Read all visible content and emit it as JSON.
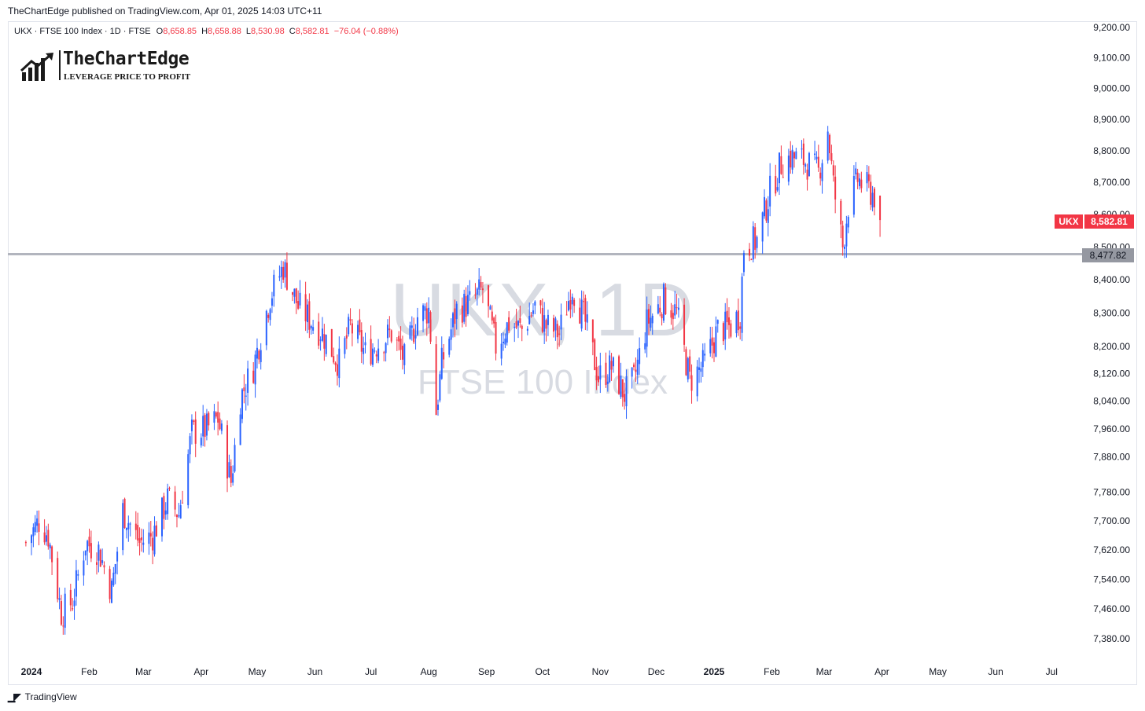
{
  "header": {
    "publish_text": "TheChartEdge published on TradingView.com, Apr 01, 2025 14:03 UTC+11",
    "symbol_line": "UKX · FTSE 100 Index · 1D · FTSE",
    "ohlc": [
      {
        "label": "O",
        "value": "8,658.85"
      },
      {
        "label": "H",
        "value": "8,658.88"
      },
      {
        "label": "L",
        "value": "8,530.98"
      },
      {
        "label": "C",
        "value": "8,582.81"
      }
    ],
    "change": "−76.04 (−0.88%)"
  },
  "logo": {
    "title": "TheChartEdge",
    "subtitle": "LEVERAGE PRICE TO PROFIT",
    "icon": "bar-chart-arrow-icon"
  },
  "watermark": {
    "symbol": "UKX, 1D",
    "name": "FTSE 100 Index"
  },
  "tags": {
    "symbol": "UKX",
    "last_price": "8,582.81",
    "level_price": "8,477.82"
  },
  "footer": {
    "brand": "TradingView",
    "icon": "tradingview-logo-icon"
  },
  "colors": {
    "up": "#2962ff",
    "down": "#f23645",
    "level_line": "#b2b5be",
    "level_tag": "#9598a1"
  },
  "chart_data": {
    "type": "candlestick",
    "interval": "1D",
    "y_scale": "log",
    "y_ticks": [
      {
        "value": 9200,
        "label": "9,200.00"
      },
      {
        "value": 9100,
        "label": "9,100.00"
      },
      {
        "value": 9000,
        "label": "9,000.00"
      },
      {
        "value": 8900,
        "label": "8,900.00"
      },
      {
        "value": 8800,
        "label": "8,800.00"
      },
      {
        "value": 8700,
        "label": "8,700.00"
      },
      {
        "value": 8600,
        "label": "8,600.00"
      },
      {
        "value": 8500,
        "label": "8,500.00"
      },
      {
        "value": 8400,
        "label": "8,400.00"
      },
      {
        "value": 8300,
        "label": "8,300.00"
      },
      {
        "value": 8200,
        "label": "8,200.00"
      },
      {
        "value": 8120,
        "label": "8,120.00"
      },
      {
        "value": 8040,
        "label": "8,040.00"
      },
      {
        "value": 7960,
        "label": "7,960.00"
      },
      {
        "value": 7880,
        "label": "7,880.00"
      },
      {
        "value": 7780,
        "label": "7,780.00"
      },
      {
        "value": 7700,
        "label": "7,700.00"
      },
      {
        "value": 7620,
        "label": "7,620.00"
      },
      {
        "value": 7540,
        "label": "7,540.00"
      },
      {
        "value": 7460,
        "label": "7,460.00"
      },
      {
        "value": 7380,
        "label": "7,380.00"
      }
    ],
    "x_ticks": [
      {
        "date": "2024-01-01",
        "label": "2024",
        "bold": true
      },
      {
        "date": "2024-02-01",
        "label": "Feb"
      },
      {
        "date": "2024-03-01",
        "label": "Mar"
      },
      {
        "date": "2024-04-01",
        "label": "Apr"
      },
      {
        "date": "2024-05-01",
        "label": "May"
      },
      {
        "date": "2024-06-01",
        "label": "Jun"
      },
      {
        "date": "2024-07-01",
        "label": "Jul"
      },
      {
        "date": "2024-08-01",
        "label": "Aug"
      },
      {
        "date": "2024-09-01",
        "label": "Sep"
      },
      {
        "date": "2024-10-01",
        "label": "Oct"
      },
      {
        "date": "2024-11-01",
        "label": "Nov"
      },
      {
        "date": "2024-12-01",
        "label": "Dec"
      },
      {
        "date": "2025-01-01",
        "label": "2025",
        "bold": true
      },
      {
        "date": "2025-02-01",
        "label": "Feb"
      },
      {
        "date": "2025-03-01",
        "label": "Mar"
      },
      {
        "date": "2025-04-01",
        "label": "Apr"
      },
      {
        "date": "2025-05-01",
        "label": "May"
      },
      {
        "date": "2025-06-01",
        "label": "Jun"
      },
      {
        "date": "2025-07-01",
        "label": "Jul"
      }
    ],
    "horizontal_level": 8477.82,
    "last_close": 8582.81,
    "anchors": [
      {
        "date": "2023-12-29",
        "close": 7640
      },
      {
        "date": "2024-01-05",
        "close": 7700
      },
      {
        "date": "2024-01-10",
        "close": 7660
      },
      {
        "date": "2024-01-17",
        "close": 7450
      },
      {
        "date": "2024-01-23",
        "close": 7480
      },
      {
        "date": "2024-01-30",
        "close": 7640
      },
      {
        "date": "2024-02-06",
        "close": 7620
      },
      {
        "date": "2024-02-13",
        "close": 7510
      },
      {
        "date": "2024-02-19",
        "close": 7730
      },
      {
        "date": "2024-02-28",
        "close": 7640
      },
      {
        "date": "2024-03-06",
        "close": 7660
      },
      {
        "date": "2024-03-14",
        "close": 7760
      },
      {
        "date": "2024-03-20",
        "close": 7720
      },
      {
        "date": "2024-03-27",
        "close": 7950
      },
      {
        "date": "2024-04-04",
        "close": 7960
      },
      {
        "date": "2024-04-10",
        "close": 7990
      },
      {
        "date": "2024-04-17",
        "close": 7810
      },
      {
        "date": "2024-04-22",
        "close": 8050
      },
      {
        "date": "2024-04-29",
        "close": 8140
      },
      {
        "date": "2024-05-08",
        "close": 8350
      },
      {
        "date": "2024-05-15",
        "close": 8440
      },
      {
        "date": "2024-05-23",
        "close": 8320
      },
      {
        "date": "2024-05-31",
        "close": 8270
      },
      {
        "date": "2024-06-05",
        "close": 8240
      },
      {
        "date": "2024-06-14",
        "close": 8150
      },
      {
        "date": "2024-06-20",
        "close": 8260
      },
      {
        "date": "2024-06-28",
        "close": 8180
      },
      {
        "date": "2024-07-05",
        "close": 8210
      },
      {
        "date": "2024-07-12",
        "close": 8240
      },
      {
        "date": "2024-07-19",
        "close": 8160
      },
      {
        "date": "2024-07-26",
        "close": 8290
      },
      {
        "date": "2024-08-01",
        "close": 8310
      },
      {
        "date": "2024-08-05",
        "close": 8010
      },
      {
        "date": "2024-08-08",
        "close": 8150
      },
      {
        "date": "2024-08-16",
        "close": 8310
      },
      {
        "date": "2024-08-23",
        "close": 8330
      },
      {
        "date": "2024-08-30",
        "close": 8370
      },
      {
        "date": "2024-09-06",
        "close": 8200
      },
      {
        "date": "2024-09-13",
        "close": 8270
      },
      {
        "date": "2024-09-20",
        "close": 8250
      },
      {
        "date": "2024-09-27",
        "close": 8320
      },
      {
        "date": "2024-10-03",
        "close": 8260
      },
      {
        "date": "2024-10-10",
        "close": 8240
      },
      {
        "date": "2024-10-17",
        "close": 8380
      },
      {
        "date": "2024-10-24",
        "close": 8270
      },
      {
        "date": "2024-10-31",
        "close": 8110
      },
      {
        "date": "2024-11-07",
        "close": 8140
      },
      {
        "date": "2024-11-14",
        "close": 8060
      },
      {
        "date": "2024-11-19",
        "close": 8100
      },
      {
        "date": "2024-11-26",
        "close": 8270
      },
      {
        "date": "2024-12-05",
        "close": 8340
      },
      {
        "date": "2024-12-12",
        "close": 8300
      },
      {
        "date": "2024-12-19",
        "close": 8100
      },
      {
        "date": "2024-12-27",
        "close": 8150
      },
      {
        "date": "2025-01-03",
        "close": 8250
      },
      {
        "date": "2025-01-10",
        "close": 8260
      },
      {
        "date": "2025-01-15",
        "close": 8300
      },
      {
        "date": "2025-01-17",
        "close": 8500
      },
      {
        "date": "2025-01-24",
        "close": 8520
      },
      {
        "date": "2025-01-31",
        "close": 8670
      },
      {
        "date": "2025-02-06",
        "close": 8760
      },
      {
        "date": "2025-02-11",
        "close": 8780
      },
      {
        "date": "2025-02-18",
        "close": 8770
      },
      {
        "date": "2025-02-26",
        "close": 8730
      },
      {
        "date": "2025-03-03",
        "close": 8870
      },
      {
        "date": "2025-03-06",
        "close": 8690
      },
      {
        "date": "2025-03-11",
        "close": 8500
      },
      {
        "date": "2025-03-14",
        "close": 8630
      },
      {
        "date": "2025-03-19",
        "close": 8710
      },
      {
        "date": "2025-03-26",
        "close": 8670
      },
      {
        "date": "2025-03-28",
        "close": 8659
      },
      {
        "date": "2025-03-31",
        "close": 8582.81
      }
    ]
  }
}
